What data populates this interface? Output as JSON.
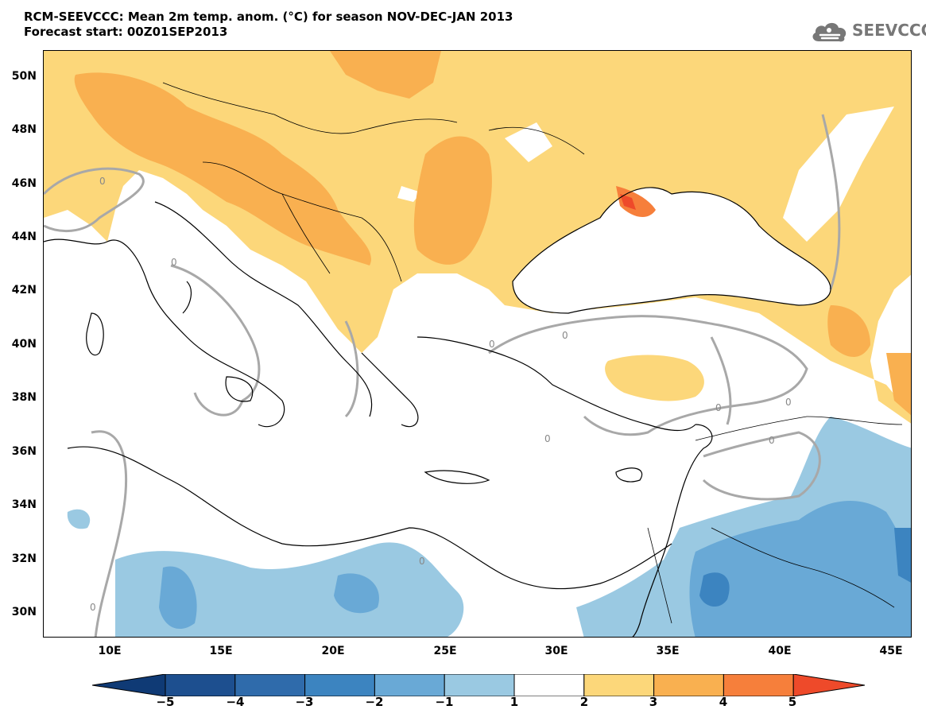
{
  "header": {
    "title_line1": "RCM-SEEVCCC: Mean 2m temp. anom. (°C) for season NOV-DEC-JAN 2013",
    "title_line2": "Forecast start: 00Z01SEP2013",
    "logo_text": "SEEVCCC"
  },
  "map": {
    "lat_labels": [
      "50N",
      "48N",
      "46N",
      "44N",
      "42N",
      "40N",
      "38N",
      "36N",
      "34N",
      "32N",
      "30N"
    ],
    "lon_labels": [
      "10E",
      "15E",
      "20E",
      "25E",
      "30E",
      "35E",
      "40E",
      "45E"
    ],
    "contour_label": "0",
    "colors": {
      "warm_1_2": "#fcd77a",
      "warm_2_3": "#f9b050",
      "warm_3_4": "#f67f3b",
      "warm_4_5": "#ee4a2a",
      "cool_1_2": "#9ac9e2",
      "cool_2_3": "#69a9d6",
      "cool_3_4": "#3c84c0",
      "coast": "#000000",
      "zero_contour": "#a8a8a8"
    }
  },
  "colorbar": {
    "labels": [
      "−5",
      "−4",
      "−3",
      "−2",
      "−1",
      "1",
      "2",
      "3",
      "4",
      "5"
    ],
    "colors": [
      "#1d4f8f",
      "#2f6bab",
      "#3c84c0",
      "#69a9d6",
      "#9ac9e2",
      "#ffffff",
      "#fcd77a",
      "#f9b050",
      "#f67f3b",
      "#ee4a2a",
      "#d81f1f",
      "#0f3a75"
    ]
  }
}
